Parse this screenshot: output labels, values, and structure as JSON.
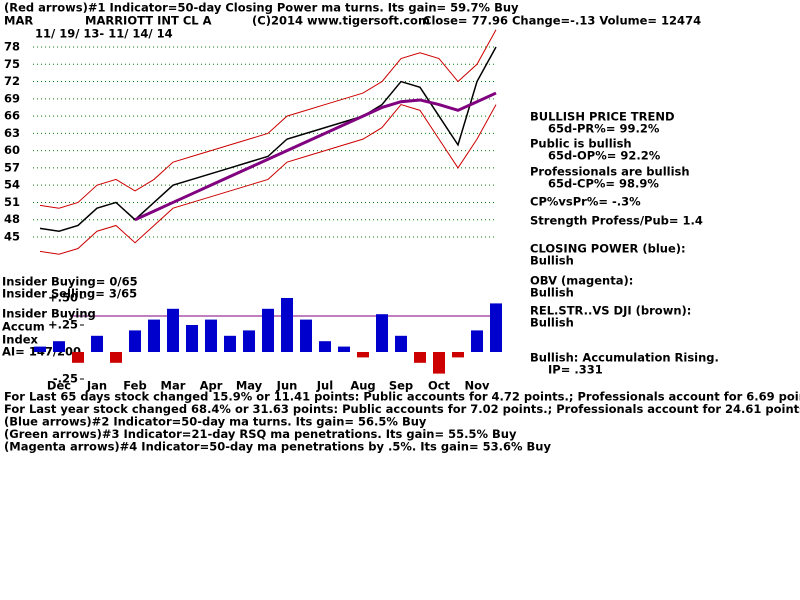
{
  "header": {
    "indicator": "(Red arrows)#1 Indicator=50-day Closing Power ma turns. Its gain= 59.7% Buy",
    "symbol": "MAR",
    "company": "MARRIOTT INT CL A",
    "copyright": "(C)2014 www.tigersoft.com",
    "quote": "Close=  77.96  Change=-.13 Volume= 12474",
    "dates": "11/ 19/ 13- 11/ 14/ 14"
  },
  "side_notes": [
    "BULLISH PRICE TREND",
    "65d-PR%= 99.2%",
    "Public is bullish",
    "65d-OP%= 92.2%",
    "Professionals are bullish",
    "65d-CP%= 98.9%",
    "CP%vsPr%= -.3%",
    "Strength Profess/Pub= 1.4",
    "CLOSING POWER (blue):",
    "Bullish",
    "OBV (magenta):",
    "Bullish",
    "REL.STR..VS DJI (brown):",
    "Bullish",
    "Bullish: Accumulation Rising.",
    "IP=  .331"
  ],
  "left_labels": [
    "Insider Buying= 0/65",
    "Insider Selling= 3/65",
    "Insider Buying",
    "Accum",
    "Index",
    "AI= 147/200"
  ],
  "footer": [
    "For Last 65 days stock changed  15.9% or  11.41 points:  Public accounts for  4.72 points.;  Professionals account for  6.69 points.",
    "For Last year stock changed  68.4% or  31.63 points:  Public accounts for  7.02 points.;  Professionals account for  24.61 points.",
    "(Blue arrows)#2 Indicator=50-day ma turns. Its gain= 56.5% Buy",
    "(Green arrows)#3 Indicator=21-day RSQ ma penetrations. Its gain= 55.5% Buy",
    "(Magenta arrows)#4 Indicator=50-day ma penetrations by .5%. Its gain= 53.6% Buy"
  ],
  "chart_data": [
    {
      "type": "line",
      "categories": [
        null,
        "Dec",
        null,
        "Jan",
        null,
        "Feb",
        null,
        "Mar",
        null,
        "Apr",
        null,
        "May",
        null,
        "Jun",
        null,
        "Jul",
        null,
        "Aug",
        null,
        "Sep",
        null,
        "Oct",
        null,
        "Nov",
        null
      ],
      "series": [
        {
          "color": "#000000",
          "values": [
            46.5,
            46,
            47,
            50,
            51,
            48,
            51,
            54,
            55,
            56,
            57,
            58,
            59,
            62,
            63,
            64,
            65,
            66,
            68,
            72,
            71,
            66,
            61,
            72,
            78
          ]
        },
        {
          "color": "#cc0000",
          "values": [
            50.5,
            50,
            51,
            54,
            55,
            53,
            55,
            58,
            59,
            60,
            61,
            62,
            63,
            66,
            67,
            68,
            69,
            70,
            72,
            76,
            77,
            76,
            72,
            75,
            81
          ]
        },
        {
          "color": "#cc0000",
          "values": [
            42.5,
            42,
            43,
            46,
            47,
            44,
            47,
            50,
            51,
            52,
            53,
            54,
            55,
            58,
            59,
            60,
            61,
            62,
            64,
            68,
            67,
            62,
            57,
            62,
            68
          ]
        },
        {
          "color": "#800080",
          "values": [
            null,
            null,
            null,
            null,
            null,
            48,
            49.5,
            51,
            52.5,
            54,
            55.5,
            57,
            58.5,
            60,
            61.5,
            63,
            64.5,
            66,
            67.5,
            68.5,
            68.8,
            68,
            67,
            68.5,
            70
          ]
        }
      ],
      "ylim": [
        43,
        80
      ],
      "yticks": [
        45,
        48,
        51,
        54,
        57,
        60,
        63,
        66,
        69,
        72,
        75,
        78
      ],
      "grid": true,
      "grid_color": "#008000"
    },
    {
      "type": "bar",
      "color": "#0000cc",
      "negative_color": "#cc0000",
      "values": [
        0.05,
        0.1,
        -0.1,
        0.15,
        -0.1,
        0.2,
        0.3,
        0.4,
        0.25,
        0.3,
        0.15,
        0.2,
        0.4,
        0.5,
        0.3,
        0.1,
        0.05,
        -0.05,
        0.35,
        0.15,
        -0.1,
        -0.2,
        -0.05,
        0.2,
        0.45
      ],
      "ylim": [
        -0.3,
        0.55
      ],
      "yticks": [
        {
          "value": 0.5,
          "label": "+.50"
        },
        {
          "value": 0.25,
          "label": "+.25"
        },
        {
          "value": -0.25,
          "label": "-.25"
        }
      ]
    }
  ]
}
